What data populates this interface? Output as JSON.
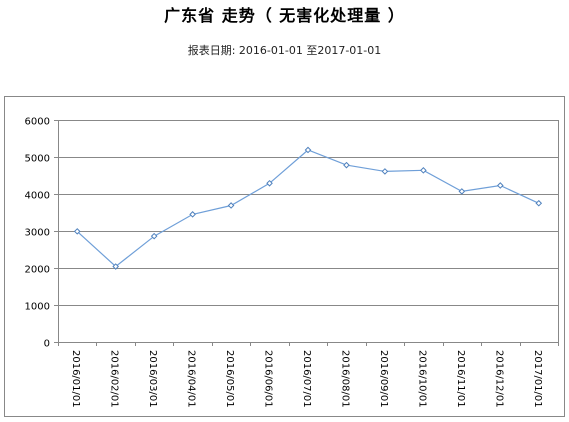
{
  "header": {
    "title": "广东省 走势（ 无害化处理量 ）",
    "subtitle": "报表日期: 2016-01-01 至2017-01-01"
  },
  "chart_data": {
    "type": "line",
    "title": "广东省 走势（ 无害化处理量 ）",
    "subtitle": "报表日期: 2016-01-01 至2017-01-01",
    "xlabel": "",
    "ylabel": "",
    "categories": [
      "2016/01/01",
      "2016/02/01",
      "2016/03/01",
      "2016/04/01",
      "2016/05/01",
      "2016/06/01",
      "2016/07/01",
      "2016/08/01",
      "2016/09/01",
      "2016/10/01",
      "2016/11/01",
      "2016/12/01",
      "2017/01/01"
    ],
    "series": [
      {
        "values": [
          2990,
          2040,
          2860,
          3450,
          3690,
          4290,
          5190,
          4780,
          4610,
          4640,
          4070,
          4230,
          3750
        ]
      }
    ],
    "ylim": [
      0,
      6000
    ],
    "yticks": [
      0,
      1000,
      2000,
      3000,
      4000,
      5000,
      6000
    ],
    "grid": true,
    "legend": "none",
    "colors": {
      "line": "#6f9fd8",
      "marker": "#4f81bd",
      "grid": "#888888",
      "frame": "#888888"
    }
  }
}
